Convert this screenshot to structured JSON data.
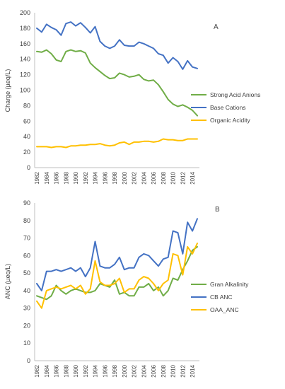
{
  "chart_data": [
    {
      "type": "line",
      "panel_label": "A",
      "ylabel": "Charge (µeq/L)",
      "xlabel": "",
      "ylim": [
        0,
        200
      ],
      "yticks": [
        0,
        20,
        40,
        60,
        80,
        100,
        120,
        140,
        160,
        180,
        200
      ],
      "x_tick_labels": [
        "1982",
        "1984",
        "1986",
        "1988",
        "1990",
        "1992",
        "1994",
        "1996",
        "1998",
        "2000",
        "2002",
        "2004",
        "2006",
        "2008",
        "2010",
        "2012",
        "2014"
      ],
      "x": [
        1982,
        1983,
        1984,
        1985,
        1986,
        1987,
        1988,
        1989,
        1990,
        1991,
        1992,
        1993,
        1994,
        1995,
        1996,
        1997,
        1998,
        1999,
        2000,
        2001,
        2002,
        2003,
        2004,
        2005,
        2006,
        2007,
        2008,
        2009,
        2010,
        2011,
        2012,
        2013,
        2014,
        2015
      ],
      "grid": false,
      "legend_position": "right",
      "series": [
        {
          "name": "Strong Acid Anions",
          "color": "#70ad47",
          "values": [
            150,
            149,
            152,
            147,
            139,
            137,
            150,
            152,
            150,
            151,
            148,
            135,
            129,
            124,
            119,
            115,
            116,
            122,
            120,
            117,
            118,
            120,
            114,
            112,
            113,
            107,
            98,
            88,
            82,
            79,
            81,
            78,
            74,
            67
          ]
        },
        {
          "name": "Base Cations",
          "color": "#4472c4",
          "values": [
            180,
            175,
            185,
            181,
            178,
            171,
            186,
            188,
            183,
            187,
            181,
            174,
            182,
            163,
            157,
            154,
            157,
            165,
            158,
            157,
            157,
            162,
            160,
            157,
            154,
            147,
            145,
            135,
            142,
            137,
            127,
            138,
            130,
            128
          ]
        },
        {
          "name": "Organic Acidity",
          "color": "#ffc000",
          "values": [
            27,
            27,
            27,
            26,
            27,
            27,
            26,
            28,
            28,
            29,
            29,
            30,
            30,
            31,
            29,
            28,
            29,
            32,
            33,
            30,
            33,
            33,
            34,
            34,
            33,
            34,
            37,
            36,
            36,
            35,
            35,
            37,
            37,
            37
          ]
        }
      ]
    },
    {
      "type": "line",
      "panel_label": "B",
      "ylabel": "ANC (µeq/L)",
      "xlabel": "",
      "ylim": [
        0,
        90
      ],
      "yticks": [
        0,
        10,
        20,
        30,
        40,
        50,
        60,
        70,
        80,
        90
      ],
      "x_tick_labels": [
        "1982",
        "1984",
        "1986",
        "1988",
        "1990",
        "1992",
        "1994",
        "1996",
        "1998",
        "2000",
        "2002",
        "2004",
        "2006",
        "2008",
        "2010",
        "2012",
        "2014"
      ],
      "x": [
        1982,
        1983,
        1984,
        1985,
        1986,
        1987,
        1988,
        1989,
        1990,
        1991,
        1992,
        1993,
        1994,
        1995,
        1996,
        1997,
        1998,
        1999,
        2000,
        2001,
        2002,
        2003,
        2004,
        2005,
        2006,
        2007,
        2008,
        2009,
        2010,
        2011,
        2012,
        2013,
        2014,
        2015
      ],
      "grid": false,
      "legend_position": "right",
      "series": [
        {
          "name": "Gran Alkalinity",
          "color": "#70ad47",
          "values": [
            37,
            36,
            35,
            37,
            43,
            40,
            38,
            40,
            41,
            40,
            39,
            39,
            40,
            44,
            43,
            42,
            46,
            38,
            39,
            37,
            37,
            42,
            42,
            44,
            40,
            42,
            37,
            40,
            47,
            46,
            52,
            57,
            63,
            65
          ]
        },
        {
          "name": "CB ANC",
          "color": "#4472c4",
          "values": [
            44,
            40,
            51,
            51,
            52,
            51,
            52,
            53,
            51,
            53,
            48,
            53,
            68,
            54,
            53,
            53,
            55,
            59,
            52,
            53,
            53,
            59,
            61,
            60,
            57,
            54,
            58,
            59,
            74,
            73,
            61,
            79,
            74,
            81
          ]
        },
        {
          "name": "OAA_ANC",
          "color": "#ffc000",
          "values": [
            34,
            30,
            40,
            41,
            42,
            41,
            42,
            43,
            41,
            43,
            38,
            41,
            57,
            45,
            43,
            43,
            44,
            47,
            39,
            41,
            41,
            46,
            48,
            47,
            44,
            40,
            44,
            46,
            61,
            60,
            49,
            65,
            61,
            67
          ]
        }
      ]
    }
  ]
}
